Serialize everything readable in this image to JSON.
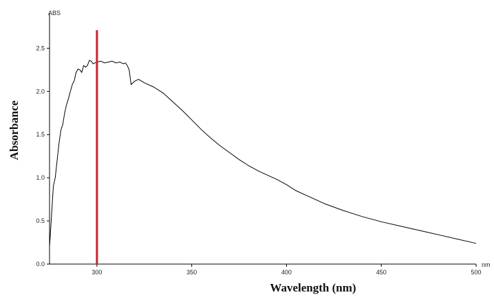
{
  "chart_data": {
    "type": "line",
    "title": "",
    "xlabel": "Wavelength (nm)",
    "ylabel": "Absorbance",
    "y_unit": "ABS",
    "x_unit": "nm",
    "xlim": [
      275,
      500
    ],
    "ylim": [
      0,
      2.9
    ],
    "x_ticks": [
      300,
      350,
      400,
      450,
      500
    ],
    "y_ticks": [
      0.0,
      0.5,
      1.0,
      1.5,
      2.0,
      2.5
    ],
    "x_tick_labels": [
      "300",
      "350",
      "400",
      "450",
      "500"
    ],
    "y_tick_labels": [
      "0.0",
      "0.5",
      "1.0",
      "1.5",
      "2.0",
      "2.5"
    ],
    "grid": false,
    "marker_line": {
      "x": 300,
      "color": "#c8242b"
    },
    "series": [
      {
        "color": "#000000",
        "x": [
          275,
          276,
          277,
          278,
          279,
          280,
          281,
          282,
          283,
          284,
          285,
          286,
          287,
          288,
          289,
          290,
          291,
          292,
          293,
          294,
          295,
          296,
          297,
          298,
          299,
          300,
          302,
          304,
          306,
          308,
          310,
          312,
          314,
          315,
          316,
          317,
          318,
          320,
          322,
          325,
          330,
          335,
          340,
          345,
          350,
          355,
          360,
          365,
          370,
          375,
          380,
          385,
          390,
          395,
          400,
          405,
          410,
          415,
          420,
          430,
          440,
          450,
          460,
          470,
          480,
          490,
          500
        ],
        "y": [
          0.2,
          0.55,
          0.9,
          1.0,
          1.2,
          1.4,
          1.55,
          1.62,
          1.75,
          1.85,
          1.92,
          2.0,
          2.08,
          2.12,
          2.22,
          2.26,
          2.25,
          2.22,
          2.3,
          2.28,
          2.3,
          2.36,
          2.35,
          2.32,
          2.33,
          2.34,
          2.35,
          2.33,
          2.34,
          2.35,
          2.33,
          2.34,
          2.32,
          2.33,
          2.3,
          2.25,
          2.08,
          2.12,
          2.14,
          2.1,
          2.05,
          1.98,
          1.88,
          1.78,
          1.67,
          1.56,
          1.46,
          1.37,
          1.29,
          1.21,
          1.14,
          1.08,
          1.03,
          0.98,
          0.92,
          0.85,
          0.8,
          0.75,
          0.7,
          0.62,
          0.55,
          0.49,
          0.44,
          0.39,
          0.34,
          0.29,
          0.24
        ]
      }
    ]
  }
}
